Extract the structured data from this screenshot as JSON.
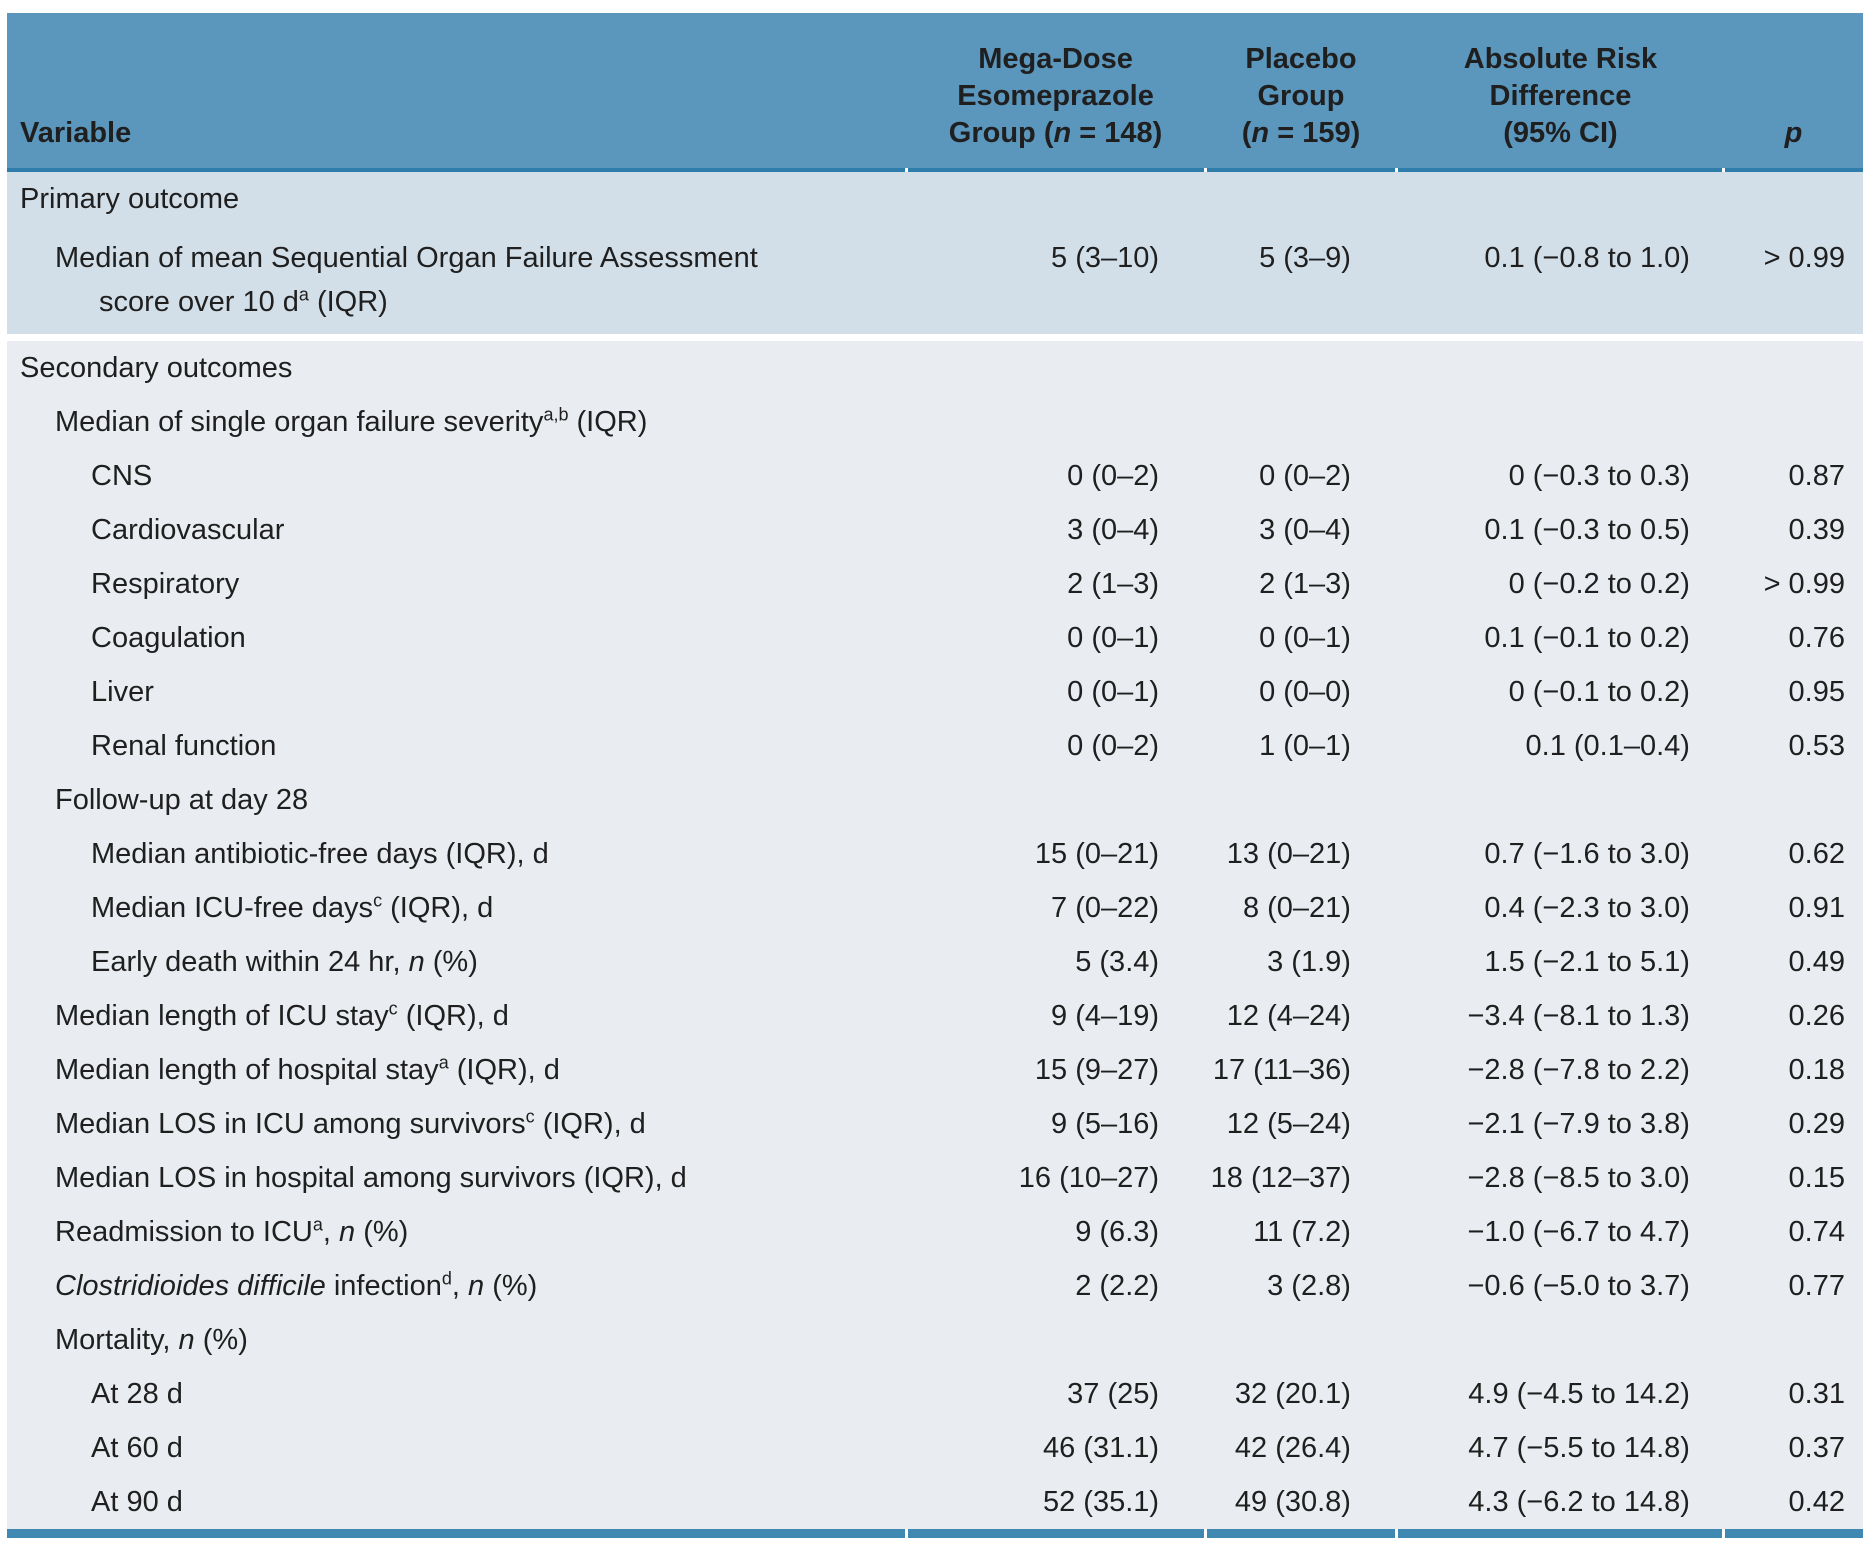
{
  "table": {
    "colors": {
      "header_bg": "#5b96bd",
      "header_rule": "#2e7dab",
      "primary_band": "#d2dfe9",
      "secondary_band": "#e9edf1",
      "bottom_rule": "#3f88b2",
      "text": "#1f1f1f"
    },
    "columns": [
      {
        "name": "variable",
        "segments": [
          {
            "text": "Variable"
          }
        ]
      },
      {
        "name": "mega-dose-esomeprazole-group",
        "segments": [
          {
            "text": "Mega-Dose"
          },
          {
            "br": true
          },
          {
            "text": "Esomeprazole"
          },
          {
            "br": true
          },
          {
            "text": "Group ("
          },
          {
            "text": "n",
            "italic": true
          },
          {
            "text": " = 148)"
          }
        ]
      },
      {
        "name": "placebo-group",
        "segments": [
          {
            "text": "Placebo"
          },
          {
            "br": true
          },
          {
            "text": "Group"
          },
          {
            "br": true
          },
          {
            "text": "("
          },
          {
            "text": "n",
            "italic": true
          },
          {
            "text": " = 159)"
          }
        ]
      },
      {
        "name": "absolute-risk-difference",
        "segments": [
          {
            "text": "Absolute Risk"
          },
          {
            "br": true
          },
          {
            "text": "Difference"
          },
          {
            "br": true
          },
          {
            "text": "(95% CI)"
          }
        ]
      },
      {
        "name": "p-value",
        "segments": [
          {
            "text": "p",
            "italic": true
          }
        ]
      }
    ],
    "rows": [
      {
        "band": "primary",
        "indent": 0,
        "segments": [
          {
            "text": "Primary outcome"
          }
        ],
        "values": [
          "",
          "",
          "",
          ""
        ]
      },
      {
        "band": "primary",
        "indent": 1,
        "twoLine": true,
        "segments": [
          {
            "text": "Median of mean Sequential Organ Failure Assessment"
          },
          {
            "br": true
          },
          {
            "text": "score over 10 d"
          },
          {
            "text": "a",
            "sup": true
          },
          {
            "text": " (IQR)"
          }
        ],
        "values": [
          "5 (3–10)",
          "5 (3–9)",
          "0.1 (−0.8 to 1.0)",
          "> 0.99"
        ]
      },
      {
        "gap": true
      },
      {
        "band": "secondary",
        "indent": 0,
        "segments": [
          {
            "text": "Secondary outcomes"
          }
        ],
        "values": [
          "",
          "",
          "",
          ""
        ]
      },
      {
        "band": "secondary",
        "indent": 1,
        "segments": [
          {
            "text": "Median of single organ failure severity"
          },
          {
            "text": "a,b",
            "sup": true
          },
          {
            "text": " (IQR)"
          }
        ],
        "values": [
          "",
          "",
          "",
          ""
        ]
      },
      {
        "band": "secondary",
        "indent": 2,
        "segments": [
          {
            "text": "CNS"
          }
        ],
        "values": [
          "0 (0–2)",
          "0 (0–2)",
          "0 (−0.3 to 0.3)",
          "0.87"
        ]
      },
      {
        "band": "secondary",
        "indent": 2,
        "segments": [
          {
            "text": "Cardiovascular"
          }
        ],
        "values": [
          "3 (0–4)",
          "3 (0–4)",
          "0.1 (−0.3 to 0.5)",
          "0.39"
        ]
      },
      {
        "band": "secondary",
        "indent": 2,
        "segments": [
          {
            "text": "Respiratory"
          }
        ],
        "values": [
          "2 (1–3)",
          "2 (1–3)",
          "0 (−0.2 to 0.2)",
          "> 0.99"
        ]
      },
      {
        "band": "secondary",
        "indent": 2,
        "segments": [
          {
            "text": "Coagulation"
          }
        ],
        "values": [
          "0 (0–1)",
          "0 (0–1)",
          "0.1 (−0.1 to 0.2)",
          "0.76"
        ]
      },
      {
        "band": "secondary",
        "indent": 2,
        "segments": [
          {
            "text": "Liver"
          }
        ],
        "values": [
          "0 (0–1)",
          "0 (0–0)",
          "0 (−0.1 to 0.2)",
          "0.95"
        ]
      },
      {
        "band": "secondary",
        "indent": 2,
        "segments": [
          {
            "text": "Renal function"
          }
        ],
        "values": [
          "0 (0–2)",
          "1 (0–1)",
          "0.1 (0.1–0.4)",
          "0.53"
        ]
      },
      {
        "band": "secondary",
        "indent": 1,
        "segments": [
          {
            "text": "Follow-up at day 28"
          }
        ],
        "values": [
          "",
          "",
          "",
          ""
        ]
      },
      {
        "band": "secondary",
        "indent": 2,
        "segments": [
          {
            "text": "Median antibiotic-free days (IQR), d"
          }
        ],
        "values": [
          "15 (0–21)",
          "13 (0–21)",
          "0.7 (−1.6 to 3.0)",
          "0.62"
        ]
      },
      {
        "band": "secondary",
        "indent": 2,
        "segments": [
          {
            "text": "Median ICU-free days"
          },
          {
            "text": "c",
            "sup": true
          },
          {
            "text": " (IQR), d"
          }
        ],
        "values": [
          "7 (0–22)",
          "8 (0–21)",
          "0.4 (−2.3 to 3.0)",
          "0.91"
        ]
      },
      {
        "band": "secondary",
        "indent": 2,
        "segments": [
          {
            "text": "Early death within 24 hr, "
          },
          {
            "text": "n",
            "italic": true
          },
          {
            "text": " (%)"
          }
        ],
        "values": [
          "5 (3.4)",
          "3 (1.9)",
          "1.5 (−2.1 to 5.1)",
          "0.49"
        ]
      },
      {
        "band": "secondary",
        "indent": 1,
        "segments": [
          {
            "text": "Median length of ICU stay"
          },
          {
            "text": "c",
            "sup": true
          },
          {
            "text": " (IQR), d"
          }
        ],
        "values": [
          "9 (4–19)",
          "12 (4–24)",
          "−3.4 (−8.1 to 1.3)",
          "0.26"
        ]
      },
      {
        "band": "secondary",
        "indent": 1,
        "segments": [
          {
            "text": "Median length of hospital stay"
          },
          {
            "text": "a",
            "sup": true
          },
          {
            "text": " (IQR), d"
          }
        ],
        "values": [
          "15 (9–27)",
          "17 (11–36)",
          "−2.8 (−7.8 to 2.2)",
          "0.18"
        ]
      },
      {
        "band": "secondary",
        "indent": 1,
        "segments": [
          {
            "text": "Median LOS in ICU among survivors"
          },
          {
            "text": "c",
            "sup": true
          },
          {
            "text": " (IQR), d"
          }
        ],
        "values": [
          "9 (5–16)",
          "12 (5–24)",
          "−2.1 (−7.9 to 3.8)",
          "0.29"
        ]
      },
      {
        "band": "secondary",
        "indent": 1,
        "segments": [
          {
            "text": "Median LOS in hospital among survivors (IQR), d"
          }
        ],
        "values": [
          "16 (10–27)",
          "18 (12–37)",
          "−2.8 (−8.5 to 3.0)",
          "0.15"
        ]
      },
      {
        "band": "secondary",
        "indent": 1,
        "segments": [
          {
            "text": "Readmission to ICU"
          },
          {
            "text": "a",
            "sup": true
          },
          {
            "text": ", "
          },
          {
            "text": "n",
            "italic": true
          },
          {
            "text": " (%)"
          }
        ],
        "values": [
          "9 (6.3)",
          "11 (7.2)",
          "−1.0 (−6.7 to 4.7)",
          "0.74"
        ]
      },
      {
        "band": "secondary",
        "indent": 1,
        "segments": [
          {
            "text": "Clostridioides difficile",
            "italic": true
          },
          {
            "text": " infection"
          },
          {
            "text": "d",
            "sup": true
          },
          {
            "text": ", "
          },
          {
            "text": "n",
            "italic": true
          },
          {
            "text": " (%)"
          }
        ],
        "values": [
          "2 (2.2)",
          "3 (2.8)",
          "−0.6 (−5.0 to 3.7)",
          "0.77"
        ]
      },
      {
        "band": "secondary",
        "indent": 1,
        "segments": [
          {
            "text": "Mortality, "
          },
          {
            "text": "n",
            "italic": true
          },
          {
            "text": " (%)"
          }
        ],
        "values": [
          "",
          "",
          "",
          ""
        ]
      },
      {
        "band": "secondary",
        "indent": 2,
        "segments": [
          {
            "text": "At 28 d"
          }
        ],
        "values": [
          "37 (25)",
          "32 (20.1)",
          "4.9 (−4.5 to 14.2)",
          "0.31"
        ]
      },
      {
        "band": "secondary",
        "indent": 2,
        "segments": [
          {
            "text": "At 60 d"
          }
        ],
        "values": [
          "46 (31.1)",
          "42 (26.4)",
          "4.7 (−5.5 to 14.8)",
          "0.37"
        ]
      },
      {
        "band": "secondary",
        "indent": 2,
        "segments": [
          {
            "text": "At 90 d"
          }
        ],
        "values": [
          "52 (35.1)",
          "49 (30.8)",
          "4.3 (−6.2 to 14.8)",
          "0.42"
        ]
      }
    ]
  }
}
